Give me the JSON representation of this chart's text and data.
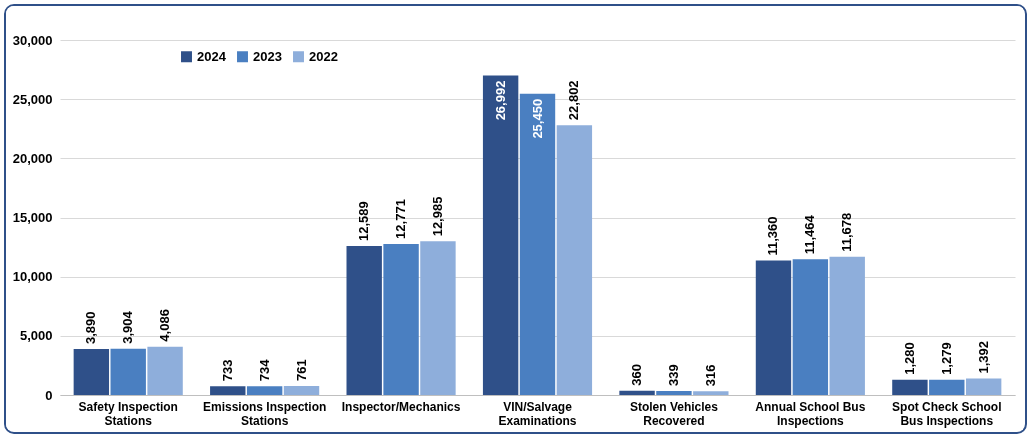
{
  "chart_data": {
    "type": "bar",
    "categories": [
      "Safety Inspection Stations",
      "Emissions Inspection Stations",
      "Inspector/Mechanics",
      "VIN/Salvage Examinations",
      "Stolen Vehicles Recovered",
      "Annual School Bus Inspections",
      "Spot Check School Bus Inspections"
    ],
    "series": [
      {
        "name": "2024",
        "color": "#2f5089",
        "values": [
          3890,
          733,
          12589,
          26992,
          360,
          11360,
          1280
        ],
        "value_labels": [
          "3,890",
          "733",
          "12,589",
          "26,992",
          "360",
          "11,360",
          "1,280"
        ]
      },
      {
        "name": "2023",
        "color": "#4a7fc1",
        "values": [
          3904,
          734,
          12771,
          25450,
          339,
          11464,
          1279
        ],
        "value_labels": [
          "3,904",
          "734",
          "12,771",
          "25,450",
          "339",
          "11,464",
          "1,279"
        ]
      },
      {
        "name": "2022",
        "color": "#8eaedb",
        "values": [
          4086,
          761,
          12985,
          22802,
          316,
          11678,
          1392
        ],
        "value_labels": [
          "4,086",
          "761",
          "12,985",
          "22,802",
          "316",
          "11,678",
          "1,392"
        ]
      }
    ],
    "ylim": [
      0,
      30000
    ],
    "yticks": [
      0,
      {
        "value": 5000,
        "label": "5,000"
      },
      {
        "value": 10000,
        "label": "10,000"
      },
      {
        "value": 15000,
        "label": "15,000"
      },
      {
        "value": 20000,
        "label": "20,000"
      },
      {
        "value": 25000,
        "label": "25,000"
      },
      {
        "value": 30000,
        "label": "30,000"
      }
    ],
    "grid": "y",
    "legend": "top left"
  }
}
